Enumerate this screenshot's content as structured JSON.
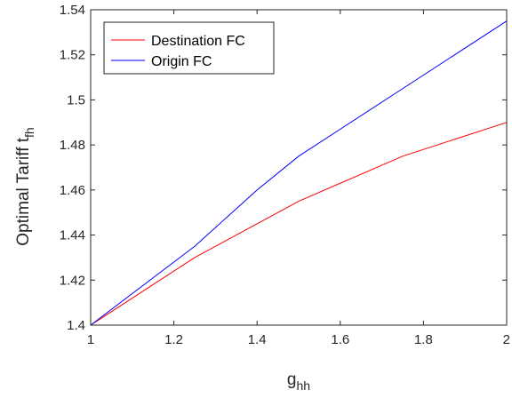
{
  "chart_data": {
    "type": "line",
    "title": "",
    "xlabel": "g",
    "xlabel_sub": "hh",
    "ylabel": "Optimal Tariff t",
    "ylabel_sub": "fh",
    "xlim": [
      1,
      2
    ],
    "ylim": [
      1.4,
      1.54
    ],
    "xticks": [
      1,
      1.2,
      1.4,
      1.6,
      1.8,
      2
    ],
    "xtick_labels": [
      "1",
      "1.2",
      "1.4",
      "1.6",
      "1.8",
      "2"
    ],
    "yticks": [
      1.4,
      1.42,
      1.44,
      1.46,
      1.48,
      1.5,
      1.52,
      1.54
    ],
    "ytick_labels": [
      "1.4",
      "1.42",
      "1.44",
      "1.46",
      "1.48",
      "1.5",
      "1.52",
      "1.54"
    ],
    "grid": false,
    "legend_position": "top-left",
    "series": [
      {
        "name": "Destination FC",
        "color": "#ff0000",
        "x": [
          1,
          1.25,
          1.5,
          1.75,
          2
        ],
        "y": [
          1.4,
          1.43,
          1.455,
          1.475,
          1.49
        ]
      },
      {
        "name": "Origin FC",
        "color": "#0000ff",
        "x": [
          1,
          1.25,
          1.4,
          1.5,
          1.75,
          2
        ],
        "y": [
          1.4,
          1.435,
          1.46,
          1.475,
          1.505,
          1.535
        ]
      }
    ]
  }
}
